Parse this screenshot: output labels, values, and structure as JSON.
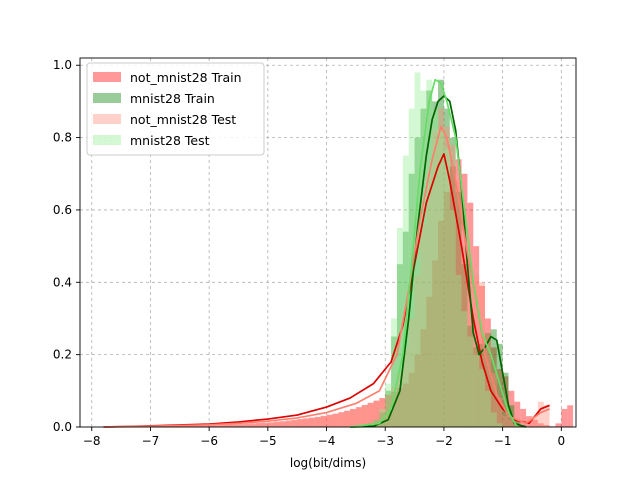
{
  "chart_data": {
    "type": "histogram",
    "title": "",
    "xlabel": "log(bit/dims)",
    "ylabel": "",
    "xlim": [
      -8.2,
      0.25
    ],
    "ylim": [
      0,
      1.02
    ],
    "xticks": [
      -8,
      -7,
      -6,
      -5,
      -4,
      -3,
      -2,
      -1,
      0
    ],
    "xtick_labels": [
      "−8",
      "−7",
      "−6",
      "−5",
      "−4",
      "−3",
      "−2",
      "−1",
      "0"
    ],
    "yticks": [
      0.0,
      0.2,
      0.4,
      0.6,
      0.8,
      1.0
    ],
    "ytick_labels": [
      "0.0",
      "0.2",
      "0.4",
      "0.6",
      "0.8",
      "1.0"
    ],
    "grid": true,
    "legend": "top-left",
    "colors": {
      "not_mnist28_train": "#ff0000",
      "mnist28_train": "#008000",
      "not_mnist28_test": "#ff8c78",
      "mnist28_test": "#90ee90"
    },
    "series": [
      {
        "name": "not_mnist28 Train",
        "color": "#ff0000",
        "fill_alpha": 0.4,
        "kde_color": "#dd0000",
        "kde": [
          [
            -7.8,
            0.0
          ],
          [
            -7.0,
            0.003
          ],
          [
            -6.0,
            0.008
          ],
          [
            -5.5,
            0.014
          ],
          [
            -5.0,
            0.022
          ],
          [
            -4.5,
            0.033
          ],
          [
            -4.0,
            0.055
          ],
          [
            -3.6,
            0.08
          ],
          [
            -3.2,
            0.12
          ],
          [
            -2.9,
            0.18
          ],
          [
            -2.7,
            0.28
          ],
          [
            -2.5,
            0.45
          ],
          [
            -2.3,
            0.62
          ],
          [
            -2.1,
            0.72
          ],
          [
            -2.0,
            0.755
          ],
          [
            -1.9,
            0.68
          ],
          [
            -1.7,
            0.5
          ],
          [
            -1.5,
            0.3
          ],
          [
            -1.35,
            0.18
          ],
          [
            -1.2,
            0.1
          ],
          [
            -1.0,
            0.05
          ],
          [
            -0.8,
            0.02
          ],
          [
            -0.55,
            0.01
          ],
          [
            -0.35,
            0.05
          ],
          [
            -0.2,
            0.06
          ]
        ],
        "bins": {
          "start": -7.8,
          "width": 0.1,
          "values": [
            0.0,
            0.0,
            0.0,
            0.0,
            0.0,
            0.0,
            0.0,
            0.0,
            0.0,
            0.001,
            0.002,
            0.002,
            0.003,
            0.003,
            0.003,
            0.004,
            0.004,
            0.004,
            0.005,
            0.005,
            0.006,
            0.007,
            0.007,
            0.008,
            0.009,
            0.01,
            0.011,
            0.012,
            0.013,
            0.015,
            0.016,
            0.018,
            0.02,
            0.022,
            0.024,
            0.026,
            0.028,
            0.031,
            0.034,
            0.037,
            0.041,
            0.045,
            0.05,
            0.055,
            0.061,
            0.067,
            0.073,
            0.08,
            0.088,
            0.097,
            0.108,
            0.12,
            0.15,
            0.2,
            0.27,
            0.36,
            0.46,
            0.57,
            0.65,
            0.72,
            0.74,
            0.7,
            0.62,
            0.5,
            0.39,
            0.3,
            0.22,
            0.16,
            0.14,
            0.1,
            0.07,
            0.05,
            0.03,
            0.02,
            0.01,
            0.005,
            0.002,
            0.01,
            0.05,
            0.06
          ]
        }
      },
      {
        "name": "mnist28 Train",
        "color": "#008000",
        "fill_alpha": 0.4,
        "kde_color": "#006400",
        "kde": [
          [
            -3.6,
            0.0
          ],
          [
            -3.2,
            0.002
          ],
          [
            -2.95,
            0.02
          ],
          [
            -2.75,
            0.1
          ],
          [
            -2.6,
            0.3
          ],
          [
            -2.45,
            0.55
          ],
          [
            -2.3,
            0.75
          ],
          [
            -2.2,
            0.85
          ],
          [
            -2.1,
            0.9
          ],
          [
            -2.0,
            0.915
          ],
          [
            -1.9,
            0.9
          ],
          [
            -1.8,
            0.82
          ],
          [
            -1.7,
            0.66
          ],
          [
            -1.6,
            0.45
          ],
          [
            -1.5,
            0.26
          ],
          [
            -1.4,
            0.2
          ],
          [
            -1.3,
            0.22
          ],
          [
            -1.2,
            0.25
          ],
          [
            -1.1,
            0.24
          ],
          [
            -1.0,
            0.15
          ],
          [
            -0.9,
            0.06
          ],
          [
            -0.8,
            0.01
          ],
          [
            -0.6,
            0.0
          ]
        ],
        "bins": {
          "start": -3.5,
          "width": 0.1,
          "values": [
            0.002,
            0.005,
            0.01,
            0.02,
            0.04,
            0.1,
            0.25,
            0.45,
            0.54,
            0.7,
            0.8,
            0.88,
            0.93,
            0.9,
            0.96,
            0.88,
            0.8,
            0.65,
            0.45,
            0.28,
            0.22,
            0.23,
            0.26,
            0.27,
            0.23,
            0.15,
            0.06,
            0.02,
            0.005
          ]
        }
      },
      {
        "name": "not_mnist28 Test",
        "color": "#ff8c78",
        "fill_alpha": 0.4,
        "kde_color": "#ff7f6e",
        "kde": [
          [
            -7.8,
            0.0
          ],
          [
            -7.0,
            0.002
          ],
          [
            -6.0,
            0.006
          ],
          [
            -5.5,
            0.01
          ],
          [
            -5.0,
            0.016
          ],
          [
            -4.5,
            0.025
          ],
          [
            -4.0,
            0.04
          ],
          [
            -3.5,
            0.065
          ],
          [
            -3.1,
            0.1
          ],
          [
            -2.8,
            0.2
          ],
          [
            -2.6,
            0.38
          ],
          [
            -2.4,
            0.58
          ],
          [
            -2.2,
            0.74
          ],
          [
            -2.05,
            0.83
          ],
          [
            -1.95,
            0.8
          ],
          [
            -1.8,
            0.68
          ],
          [
            -1.6,
            0.48
          ],
          [
            -1.45,
            0.35
          ],
          [
            -1.3,
            0.2
          ],
          [
            -1.1,
            0.09
          ],
          [
            -0.9,
            0.03
          ],
          [
            -0.6,
            0.01
          ],
          [
            -0.35,
            0.04
          ],
          [
            -0.2,
            0.05
          ]
        ],
        "bins": {
          "start": -7.6,
          "width": 0.1,
          "values": [
            0.0,
            0.0,
            0.0,
            0.0,
            0.0,
            0.0,
            0.0,
            0.0,
            0.0,
            0.001,
            0.001,
            0.002,
            0.002,
            0.002,
            0.003,
            0.003,
            0.003,
            0.004,
            0.004,
            0.005,
            0.005,
            0.006,
            0.006,
            0.007,
            0.008,
            0.009,
            0.01,
            0.011,
            0.012,
            0.014,
            0.016,
            0.018,
            0.02,
            0.022,
            0.025,
            0.027,
            0.03,
            0.034,
            0.038,
            0.042,
            0.047,
            0.052,
            0.058,
            0.064,
            0.072,
            0.08,
            0.09,
            0.11,
            0.15,
            0.22,
            0.3,
            0.42,
            0.56,
            0.7,
            0.82,
            0.88,
            0.83,
            0.78,
            0.68,
            0.5,
            0.45,
            0.42,
            0.4,
            0.26,
            0.15,
            0.08,
            0.03,
            0.02,
            0.01,
            0.005,
            0.005,
            0.03,
            0.07,
            0.06
          ]
        }
      },
      {
        "name": "mnist28 Test",
        "color": "#90ee90",
        "fill_alpha": 0.4,
        "kde_color": "#66dd66",
        "kde": [
          [
            -3.6,
            0.0
          ],
          [
            -3.1,
            0.01
          ],
          [
            -2.9,
            0.05
          ],
          [
            -2.7,
            0.2
          ],
          [
            -2.55,
            0.45
          ],
          [
            -2.4,
            0.72
          ],
          [
            -2.25,
            0.9
          ],
          [
            -2.15,
            0.96
          ],
          [
            -2.05,
            0.95
          ],
          [
            -1.95,
            0.9
          ],
          [
            -1.8,
            0.8
          ],
          [
            -1.65,
            0.6
          ],
          [
            -1.5,
            0.4
          ],
          [
            -1.35,
            0.26
          ],
          [
            -1.2,
            0.2
          ],
          [
            -1.05,
            0.12
          ],
          [
            -0.9,
            0.04
          ],
          [
            -0.75,
            0.0
          ]
        ],
        "bins": {
          "start": -3.4,
          "width": 0.1,
          "values": [
            0.005,
            0.01,
            0.02,
            0.05,
            0.12,
            0.3,
            0.55,
            0.75,
            0.88,
            0.98,
            0.93,
            0.96,
            0.88,
            0.82,
            0.77,
            0.6,
            0.42,
            0.32,
            0.25,
            0.2,
            0.16,
            0.1,
            0.04,
            0.01
          ]
        }
      }
    ]
  }
}
